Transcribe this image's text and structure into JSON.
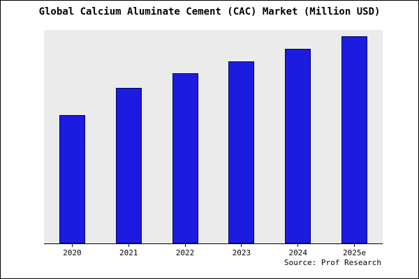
{
  "chart_data": {
    "type": "bar",
    "title": "Global Calcium Aluminate Cement (CAC) Market (Million USD)",
    "categories": [
      "2020",
      "2021",
      "2022",
      "2023",
      "2024",
      "2025e"
    ],
    "values": [
      62,
      75,
      82,
      88,
      94,
      100
    ],
    "xlabel": "",
    "ylabel": "",
    "ylim": [
      0,
      103
    ],
    "grid": false,
    "legend": "none",
    "note": "y-axis unlabeled; values are relative estimates with 2025e = 100"
  },
  "source": "Source: Prof Research",
  "colors": {
    "bar_fill": "#1c1ce0",
    "bar_border": "#000066",
    "plot_background": "#ebebeb",
    "frame_border": "#000000"
  }
}
